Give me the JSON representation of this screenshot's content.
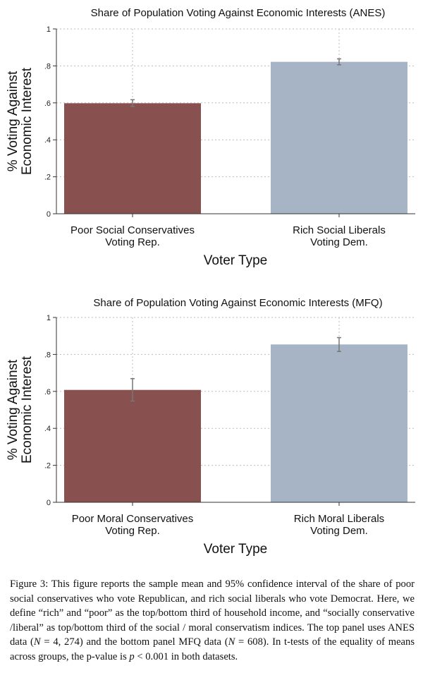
{
  "colors": {
    "bar_conservative": "#88504f",
    "bar_liberal": "#a6b4c6",
    "error_bar": "#777777",
    "grid": "#bdbdbd",
    "axis": "#333333"
  },
  "chart_data": [
    {
      "type": "bar",
      "title": "Share of Population Voting Against Economic Interests (ANES)",
      "xlabel": "Voter Type",
      "ylabel": [
        "% Voting Against",
        "Economic Interest"
      ],
      "ylim": [
        0,
        1
      ],
      "yticks": [
        0,
        0.2,
        0.4,
        0.6,
        0.8,
        1
      ],
      "ytick_labels": [
        "0",
        ".2",
        ".4",
        ".6",
        ".8",
        "1"
      ],
      "grid": true,
      "categories": [
        [
          "Poor Social Conservatives",
          "Voting Rep."
        ],
        [
          "Rich Social Liberals",
          "Voting Dem."
        ]
      ],
      "values": [
        0.598,
        0.822
      ],
      "ci_low": [
        0.581,
        0.806
      ],
      "ci_high": [
        0.617,
        0.838
      ]
    },
    {
      "type": "bar",
      "title": "Share of Population Voting Against Economic Interests (MFQ)",
      "xlabel": "Voter Type",
      "ylabel": [
        "% Voting Against",
        "Economic Interest"
      ],
      "ylim": [
        0,
        1
      ],
      "yticks": [
        0,
        0.2,
        0.4,
        0.6,
        0.8,
        1
      ],
      "ytick_labels": [
        "0",
        ".2",
        ".4",
        ".6",
        ".8",
        "1"
      ],
      "grid": true,
      "categories": [
        [
          "Poor Moral Conservatives",
          "Voting Rep."
        ],
        [
          "Rich Moral Liberals",
          "Voting Dem."
        ]
      ],
      "values": [
        0.608,
        0.854
      ],
      "ci_low": [
        0.548,
        0.816
      ],
      "ci_high": [
        0.669,
        0.891
      ]
    }
  ],
  "caption": {
    "p1": "Figure 3: This figure reports the sample mean and 95% confidence interval of the share of poor social conservatives who vote Republican, and rich social liberals who vote Democrat. Here, we define “rich” and “poor” as the top/bottom third of household income, and “socially conservative /liberal” as top/bottom third of the social / moral conservatism indices. The top panel uses ANES data (",
    "n1_var": "N",
    "n1_eq": " = 4, 274",
    "p2": ") and the bottom panel MFQ data (",
    "n2_var": "N",
    "n2_eq": " = 608",
    "p3": "). In t-tests of the equality of means across groups, the p-value is ",
    "p_var": "p",
    "p_eq": " < 0.001",
    "p4": " in both datasets."
  }
}
